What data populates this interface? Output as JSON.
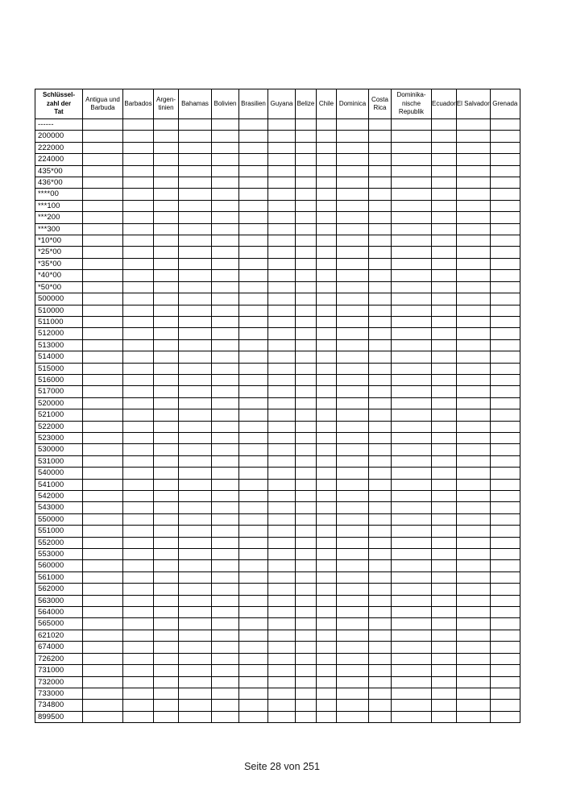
{
  "page": {
    "footer": "Seite 28 von 251"
  },
  "table": {
    "key_column_header": "Schlüssel-\nzahl der\nTat",
    "country_columns": [
      "Antigua und\nBarbuda",
      "Barbados",
      "Argen-\ntinien",
      "Bahamas",
      "Bolivien",
      "Brasilien",
      "Guyana",
      "Belize",
      "Chile",
      "Dominica",
      "Costa\nRica",
      "Dominika-\nnische\nRepublik",
      "Ecuador",
      "El Salvador",
      "Grenada"
    ],
    "row_codes": [
      "------",
      "200000",
      "222000",
      "224000",
      "435*00",
      "436*00",
      "****00",
      "***100",
      "***200",
      "***300",
      "*10*00",
      "*25*00",
      "*35*00",
      "*40*00",
      "*50*00",
      "500000",
      "510000",
      "511000",
      "512000",
      "513000",
      "514000",
      "515000",
      "516000",
      "517000",
      "520000",
      "521000",
      "522000",
      "523000",
      "530000",
      "531000",
      "540000",
      "541000",
      "542000",
      "543000",
      "550000",
      "551000",
      "552000",
      "553000",
      "560000",
      "561000",
      "562000",
      "563000",
      "564000",
      "565000",
      "621020",
      "674000",
      "726200",
      "731000",
      "732000",
      "733000",
      "734800",
      "899500"
    ]
  }
}
